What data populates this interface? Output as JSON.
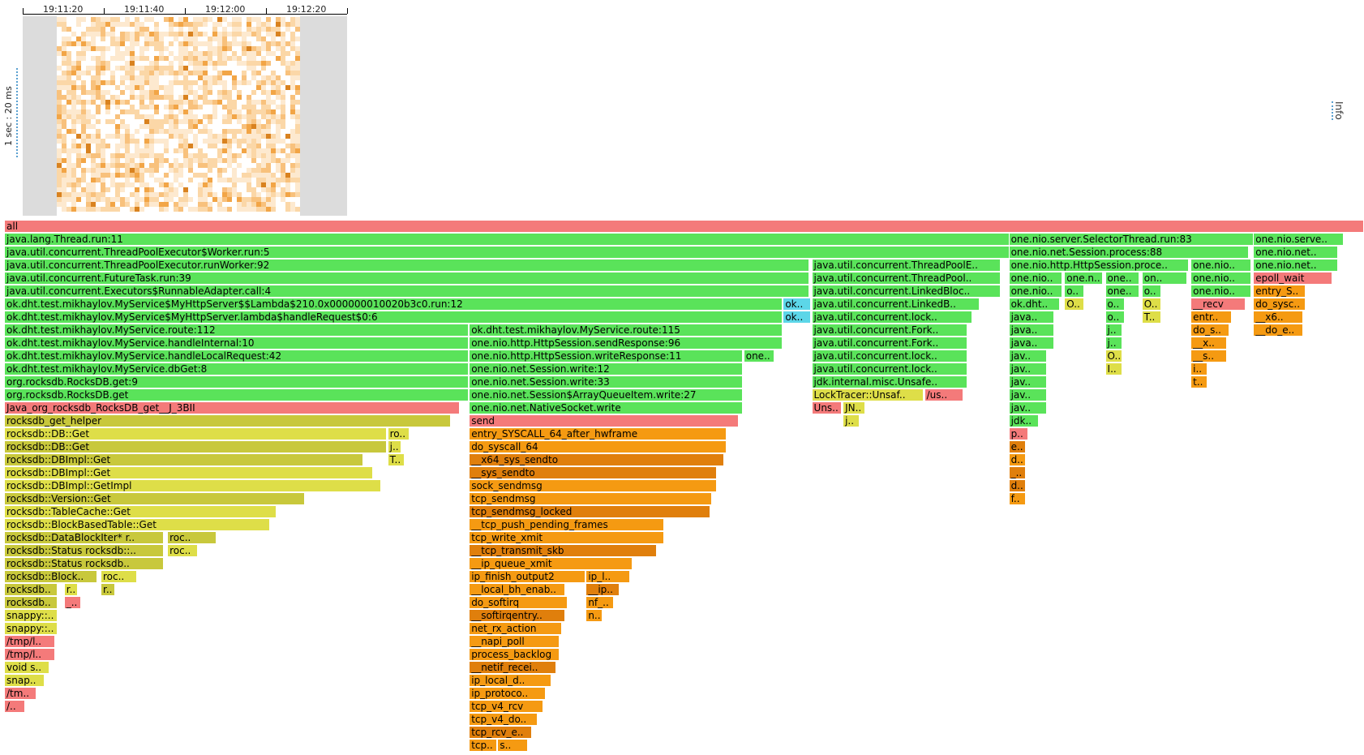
{
  "timeline": {
    "time_labels": [
      "19:11:20",
      "19:11:40",
      "19:12:00",
      "19:12:20"
    ],
    "scale_label": "1 sec : 20 ms",
    "heatmap_colors": [
      "#ffffff",
      "#fde9cf",
      "#fbd7a7",
      "#f8c17c",
      "#f2a546",
      "#d9821f"
    ]
  },
  "info_label": "Info",
  "colors": {
    "red": "#f47a7a",
    "java_green": "#5ae35a",
    "dark_green": "#48d048",
    "cyan": "#5cd6e8",
    "yellow": "#dede48",
    "olive": "#c8c83c",
    "orange": "#f59a12",
    "dark_orange": "#e07f0c"
  },
  "frames": [
    {
      "label": "all",
      "col": 0,
      "level": 0,
      "start": 0,
      "width": 1.0
    },
    {
      "label": "java.lang.Thread.run:11",
      "col": 1,
      "level": 1,
      "start": 0,
      "width": 0.739
    },
    {
      "label": "one.nio.server.SelectorThread.run:83",
      "col": 1,
      "level": 1,
      "start": 0.739,
      "width": 0.18
    },
    {
      "label": "one.nio.serve..",
      "col": 1,
      "level": 1,
      "start": 0.919,
      "width": 0.066
    },
    {
      "label": "java.util.concurrent.ThreadPoolExecutor$Worker.run:5",
      "col": 1,
      "level": 2,
      "start": 0,
      "width": 0.739
    },
    {
      "label": "one.nio.net.Session.process:88",
      "col": 1,
      "level": 2,
      "start": 0.739,
      "width": 0.176
    },
    {
      "label": "one.nio.net..",
      "col": 1,
      "level": 2,
      "start": 0.919,
      "width": 0.062
    },
    {
      "label": "java.util.concurrent.ThreadPoolExecutor.runWorker:92",
      "col": 1,
      "level": 3,
      "start": 0,
      "width": 0.592
    },
    {
      "label": "java.util.concurrent.ThreadPoolE..",
      "col": 1,
      "level": 3,
      "start": 0.594,
      "width": 0.139
    },
    {
      "label": "one.nio.http.HttpSession.proce..",
      "col": 1,
      "level": 3,
      "start": 0.739,
      "width": 0.132
    },
    {
      "label": "one.nio..",
      "col": 1,
      "level": 3,
      "start": 0.873,
      "width": 0.044
    },
    {
      "label": "one.nio.net..",
      "col": 1,
      "level": 3,
      "start": 0.919,
      "width": 0.062
    },
    {
      "label": "java.util.concurrent.FutureTask.run:39",
      "col": 1,
      "level": 4,
      "start": 0,
      "width": 0.592
    },
    {
      "label": "java.util.concurrent.ThreadPool..",
      "col": 1,
      "level": 4,
      "start": 0.594,
      "width": 0.139
    },
    {
      "label": "one.nio..",
      "col": 1,
      "level": 4,
      "start": 0.739,
      "width": 0.039
    },
    {
      "label": "one.n..",
      "col": 1,
      "level": 4,
      "start": 0.78,
      "width": 0.028
    },
    {
      "label": "one..",
      "col": 1,
      "level": 4,
      "start": 0.81,
      "width": 0.025
    },
    {
      "label": "on..",
      "col": 1,
      "level": 4,
      "start": 0.837,
      "width": 0.033
    },
    {
      "label": "one.nio..",
      "col": 1,
      "level": 4,
      "start": 0.873,
      "width": 0.044
    },
    {
      "label": "epoll_wait",
      "col": 0,
      "level": 4,
      "start": 0.919,
      "width": 0.058
    },
    {
      "label": "java.util.concurrent.Executors$RunnableAdapter.call:4",
      "col": 1,
      "level": 5,
      "start": 0,
      "width": 0.592
    },
    {
      "label": "java.util.concurrent.LinkedBloc..",
      "col": 1,
      "level": 5,
      "start": 0.594,
      "width": 0.139
    },
    {
      "label": "one.nio..",
      "col": 1,
      "level": 5,
      "start": 0.739,
      "width": 0.039
    },
    {
      "label": "o..",
      "col": 1,
      "level": 5,
      "start": 0.78,
      "width": 0.014
    },
    {
      "label": "one..",
      "col": 1,
      "level": 5,
      "start": 0.81,
      "width": 0.025
    },
    {
      "label": "o..",
      "col": 1,
      "level": 5,
      "start": 0.837,
      "width": 0.014
    },
    {
      "label": "one.nio..",
      "col": 1,
      "level": 5,
      "start": 0.873,
      "width": 0.044
    },
    {
      "label": "entry_S..",
      "col": 6,
      "level": 5,
      "start": 0.919,
      "width": 0.038
    },
    {
      "label": "ok.dht.test.mikhaylov.MyService$MyHttpServer$$Lambda$210.0x000000010020b3c0.run:12",
      "col": 1,
      "level": 6,
      "start": 0,
      "width": 0.572
    },
    {
      "label": "ok..",
      "col": 3,
      "level": 6,
      "start": 0.573,
      "width": 0.02
    },
    {
      "label": "java.util.concurrent.LinkedB..",
      "col": 1,
      "level": 6,
      "start": 0.594,
      "width": 0.123
    },
    {
      "label": "ok.dht..",
      "col": 1,
      "level": 6,
      "start": 0.739,
      "width": 0.037
    },
    {
      "label": "O..",
      "col": 4,
      "level": 6,
      "start": 0.78,
      "width": 0.014
    },
    {
      "label": "o..",
      "col": 1,
      "level": 6,
      "start": 0.81,
      "width": 0.014
    },
    {
      "label": "O..",
      "col": 4,
      "level": 6,
      "start": 0.837,
      "width": 0.014
    },
    {
      "label": "__recv",
      "col": 0,
      "level": 6,
      "start": 0.873,
      "width": 0.04
    },
    {
      "label": "do_sysc..",
      "col": 6,
      "level": 6,
      "start": 0.919,
      "width": 0.038
    },
    {
      "label": "ok.dht.test.mikhaylov.MyService$MyHttpServer.lambda$handleRequest$0:6",
      "col": 1,
      "level": 7,
      "start": 0,
      "width": 0.572
    },
    {
      "label": "ok..",
      "col": 3,
      "level": 7,
      "start": 0.573,
      "width": 0.02
    },
    {
      "label": "java.util.concurrent.lock..",
      "col": 1,
      "level": 7,
      "start": 0.594,
      "width": 0.118
    },
    {
      "label": "java..",
      "col": 1,
      "level": 7,
      "start": 0.739,
      "width": 0.033
    },
    {
      "label": "o..",
      "col": 1,
      "level": 7,
      "start": 0.81,
      "width": 0.014
    },
    {
      "label": "T..",
      "col": 4,
      "level": 7,
      "start": 0.837,
      "width": 0.014
    },
    {
      "label": "entr..",
      "col": 6,
      "level": 7,
      "start": 0.873,
      "width": 0.03
    },
    {
      "label": "__x6..",
      "col": 6,
      "level": 7,
      "start": 0.919,
      "width": 0.036
    },
    {
      "label": "ok.dht.test.mikhaylov.MyService.route:112",
      "col": 1,
      "level": 8,
      "start": 0,
      "width": 0.341
    },
    {
      "label": "ok.dht.test.mikhaylov.MyService.route:115",
      "col": 1,
      "level": 8,
      "start": 0.342,
      "width": 0.23
    },
    {
      "label": "java.util.concurrent.Fork..",
      "col": 1,
      "level": 8,
      "start": 0.594,
      "width": 0.114
    },
    {
      "label": "java..",
      "col": 1,
      "level": 8,
      "start": 0.739,
      "width": 0.033
    },
    {
      "label": "j..",
      "col": 1,
      "level": 8,
      "start": 0.81,
      "width": 0.012
    },
    {
      "label": "do_s..",
      "col": 6,
      "level": 8,
      "start": 0.873,
      "width": 0.028
    },
    {
      "label": "__do_e..",
      "col": 6,
      "level": 8,
      "start": 0.919,
      "width": 0.036
    },
    {
      "label": "ok.dht.test.mikhaylov.MyService.handleInternal:10",
      "col": 1,
      "level": 9,
      "start": 0,
      "width": 0.341
    },
    {
      "label": "one.nio.http.HttpSession.sendResponse:96",
      "col": 1,
      "level": 9,
      "start": 0.342,
      "width": 0.23
    },
    {
      "label": "java.util.concurrent.Fork..",
      "col": 1,
      "level": 9,
      "start": 0.594,
      "width": 0.114
    },
    {
      "label": "java..",
      "col": 1,
      "level": 9,
      "start": 0.739,
      "width": 0.033
    },
    {
      "label": "j..",
      "col": 1,
      "level": 9,
      "start": 0.81,
      "width": 0.012
    },
    {
      "label": "__x..",
      "col": 6,
      "level": 9,
      "start": 0.873,
      "width": 0.026
    },
    {
      "label": "ok.dht.test.mikhaylov.MyService.handleLocalRequest:42",
      "col": 1,
      "level": 10,
      "start": 0,
      "width": 0.341
    },
    {
      "label": "one.nio.http.HttpSession.writeResponse:11",
      "col": 1,
      "level": 10,
      "start": 0.342,
      "width": 0.201
    },
    {
      "label": "one..",
      "col": 1,
      "level": 10,
      "start": 0.544,
      "width": 0.022
    },
    {
      "label": "java.util.concurrent.lock..",
      "col": 1,
      "level": 10,
      "start": 0.594,
      "width": 0.114
    },
    {
      "label": "jav..",
      "col": 1,
      "level": 10,
      "start": 0.739,
      "width": 0.028
    },
    {
      "label": "O..",
      "col": 4,
      "level": 10,
      "start": 0.81,
      "width": 0.012
    },
    {
      "label": "__s..",
      "col": 6,
      "level": 10,
      "start": 0.873,
      "width": 0.026
    },
    {
      "label": "ok.dht.test.mikhaylov.MyService.dbGet:8",
      "col": 1,
      "level": 11,
      "start": 0,
      "width": 0.341
    },
    {
      "label": "one.nio.net.Session.write:12",
      "col": 1,
      "level": 11,
      "start": 0.342,
      "width": 0.201
    },
    {
      "label": "java.util.concurrent.lock..",
      "col": 1,
      "level": 11,
      "start": 0.594,
      "width": 0.114
    },
    {
      "label": "jav..",
      "col": 1,
      "level": 11,
      "start": 0.739,
      "width": 0.028
    },
    {
      "label": "I..",
      "col": 4,
      "level": 11,
      "start": 0.81,
      "width": 0.012
    },
    {
      "label": "i..",
      "col": 6,
      "level": 11,
      "start": 0.873,
      "width": 0.012
    },
    {
      "label": "org.rocksdb.RocksDB.get:9",
      "col": 1,
      "level": 12,
      "start": 0,
      "width": 0.341
    },
    {
      "label": "one.nio.net.Session.write:33",
      "col": 1,
      "level": 12,
      "start": 0.342,
      "width": 0.201
    },
    {
      "label": "jdk.internal.misc.Unsafe..",
      "col": 1,
      "level": 12,
      "start": 0.594,
      "width": 0.114
    },
    {
      "label": "jav..",
      "col": 1,
      "level": 12,
      "start": 0.739,
      "width": 0.028
    },
    {
      "label": "t..",
      "col": 6,
      "level": 12,
      "start": 0.873,
      "width": 0.012
    },
    {
      "label": "org.rocksdb.RocksDB.get",
      "col": 1,
      "level": 13,
      "start": 0,
      "width": 0.341
    },
    {
      "label": "one.nio.net.Session$ArrayQueueItem.write:27",
      "col": 1,
      "level": 13,
      "start": 0.342,
      "width": 0.201
    },
    {
      "label": "LockTracer::Unsaf..",
      "col": 4,
      "level": 13,
      "start": 0.594,
      "width": 0.082
    },
    {
      "label": "/us..",
      "col": 0,
      "level": 13,
      "start": 0.677,
      "width": 0.028
    },
    {
      "label": "jav..",
      "col": 1,
      "level": 13,
      "start": 0.739,
      "width": 0.028
    },
    {
      "label": "Java_org_rocksdb_RocksDB_get__J_3BII",
      "col": 0,
      "level": 14,
      "start": 0,
      "width": 0.335
    },
    {
      "label": "one.nio.net.NativeSocket.write",
      "col": 1,
      "level": 14,
      "start": 0.342,
      "width": 0.201
    },
    {
      "label": "Uns..",
      "col": 0,
      "level": 14,
      "start": 0.594,
      "width": 0.022
    },
    {
      "label": "JN..",
      "col": 4,
      "level": 14,
      "start": 0.617,
      "width": 0.016
    },
    {
      "label": "jav..",
      "col": 1,
      "level": 14,
      "start": 0.739,
      "width": 0.028
    },
    {
      "label": "rocksdb_get_helper",
      "col": 5,
      "level": 15,
      "start": 0,
      "width": 0.328
    },
    {
      "label": "send",
      "col": 0,
      "level": 15,
      "start": 0.342,
      "width": 0.198
    },
    {
      "label": "j..",
      "col": 4,
      "level": 15,
      "start": 0.617,
      "width": 0.012
    },
    {
      "label": "jdk..",
      "col": 1,
      "level": 15,
      "start": 0.739,
      "width": 0.022
    },
    {
      "label": "rocksdb::DB::Get",
      "col": 4,
      "level": 16,
      "start": 0,
      "width": 0.281
    },
    {
      "label": "ro..",
      "col": 4,
      "level": 16,
      "start": 0.282,
      "width": 0.016
    },
    {
      "label": "entry_SYSCALL_64_after_hwframe",
      "col": 6,
      "level": 16,
      "start": 0.342,
      "width": 0.189
    },
    {
      "label": "p..",
      "col": 0,
      "level": 16,
      "start": 0.739,
      "width": 0.014
    },
    {
      "label": "rocksdb::DB::Get",
      "col": 5,
      "level": 17,
      "start": 0,
      "width": 0.281
    },
    {
      "label": "j..",
      "col": 4,
      "level": 17,
      "start": 0.282,
      "width": 0.01
    },
    {
      "label": "do_syscall_64",
      "col": 6,
      "level": 17,
      "start": 0.342,
      "width": 0.189
    },
    {
      "label": "e..",
      "col": 7,
      "level": 17,
      "start": 0.739,
      "width": 0.012
    },
    {
      "label": "rocksdb::DBImpl::Get",
      "col": 5,
      "level": 18,
      "start": 0,
      "width": 0.264
    },
    {
      "label": "T..",
      "col": 4,
      "level": 18,
      "start": 0.282,
      "width": 0.012
    },
    {
      "label": "__x64_sys_sendto",
      "col": 7,
      "level": 18,
      "start": 0.342,
      "width": 0.187
    },
    {
      "label": "d..",
      "col": 6,
      "level": 18,
      "start": 0.739,
      "width": 0.012
    },
    {
      "label": "rocksdb::DBImpl::Get",
      "col": 4,
      "level": 19,
      "start": 0,
      "width": 0.271
    },
    {
      "label": "__sys_sendto",
      "col": 7,
      "level": 19,
      "start": 0.342,
      "width": 0.182
    },
    {
      "label": "_..",
      "col": 7,
      "level": 19,
      "start": 0.739,
      "width": 0.012
    },
    {
      "label": "rocksdb::DBImpl::GetImpl",
      "col": 4,
      "level": 20,
      "start": 0,
      "width": 0.277
    },
    {
      "label": "sock_sendmsg",
      "col": 6,
      "level": 20,
      "start": 0.342,
      "width": 0.182
    },
    {
      "label": "d..",
      "col": 7,
      "level": 20,
      "start": 0.739,
      "width": 0.012
    },
    {
      "label": "rocksdb::Version::Get",
      "col": 5,
      "level": 21,
      "start": 0,
      "width": 0.221
    },
    {
      "label": "tcp_sendmsg",
      "col": 6,
      "level": 21,
      "start": 0.342,
      "width": 0.178
    },
    {
      "label": "f..",
      "col": 6,
      "level": 21,
      "start": 0.739,
      "width": 0.012
    },
    {
      "label": "rocksdb::TableCache::Get",
      "col": 4,
      "level": 22,
      "start": 0,
      "width": 0.2
    },
    {
      "label": "tcp_sendmsg_locked",
      "col": 7,
      "level": 22,
      "start": 0.342,
      "width": 0.177
    },
    {
      "label": "rocksdb::BlockBasedTable::Get",
      "col": 4,
      "level": 23,
      "start": 0,
      "width": 0.195
    },
    {
      "label": "__tcp_push_pending_frames",
      "col": 6,
      "level": 23,
      "start": 0.342,
      "width": 0.143
    },
    {
      "label": "rocksdb::DataBlockIter* r..",
      "col": 5,
      "level": 24,
      "start": 0,
      "width": 0.117
    },
    {
      "label": "roc..",
      "col": 5,
      "level": 24,
      "start": 0.12,
      "width": 0.036
    },
    {
      "label": "tcp_write_xmit",
      "col": 6,
      "level": 24,
      "start": 0.342,
      "width": 0.143
    },
    {
      "label": "rocksdb::Status rocksdb::..",
      "col": 5,
      "level": 25,
      "start": 0,
      "width": 0.117
    },
    {
      "label": "roc..",
      "col": 4,
      "level": 25,
      "start": 0.12,
      "width": 0.022
    },
    {
      "label": "__tcp_transmit_skb",
      "col": 7,
      "level": 25,
      "start": 0.342,
      "width": 0.138
    },
    {
      "label": "rocksdb::Status rocksdb..",
      "col": 5,
      "level": 26,
      "start": 0,
      "width": 0.117
    },
    {
      "label": "__ip_queue_xmit",
      "col": 6,
      "level": 26,
      "start": 0.342,
      "width": 0.12
    },
    {
      "label": "rocksdb::Block..",
      "col": 5,
      "level": 27,
      "start": 0,
      "width": 0.068
    },
    {
      "label": "roc..",
      "col": 4,
      "level": 27,
      "start": 0.071,
      "width": 0.026
    },
    {
      "label": "ip_finish_output2",
      "col": 6,
      "level": 27,
      "start": 0.342,
      "width": 0.085
    },
    {
      "label": "ip_l..",
      "col": 6,
      "level": 27,
      "start": 0.428,
      "width": 0.032
    },
    {
      "label": "rocksdb..",
      "col": 5,
      "level": 28,
      "start": 0,
      "width": 0.039
    },
    {
      "label": "r..",
      "col": 4,
      "level": 28,
      "start": 0.044,
      "width": 0.01
    },
    {
      "label": "r..",
      "col": 5,
      "level": 28,
      "start": 0.071,
      "width": 0.01
    },
    {
      "label": "__local_bh_enab..",
      "col": 6,
      "level": 28,
      "start": 0.342,
      "width": 0.07
    },
    {
      "label": "__ip..",
      "col": 7,
      "level": 28,
      "start": 0.428,
      "width": 0.024
    },
    {
      "label": "rocksdb..",
      "col": 5,
      "level": 29,
      "start": 0,
      "width": 0.039
    },
    {
      "label": "_..",
      "col": 0,
      "level": 29,
      "start": 0.044,
      "width": 0.012
    },
    {
      "label": "do_softirq",
      "col": 6,
      "level": 29,
      "start": 0.342,
      "width": 0.072
    },
    {
      "label": "nf_..",
      "col": 6,
      "level": 29,
      "start": 0.428,
      "width": 0.02
    },
    {
      "label": "snappy::..",
      "col": 4,
      "level": 30,
      "start": 0,
      "width": 0.039
    },
    {
      "label": "__softirqentry..",
      "col": 7,
      "level": 30,
      "start": 0.342,
      "width": 0.07
    },
    {
      "label": "n..",
      "col": 6,
      "level": 30,
      "start": 0.428,
      "width": 0.012
    },
    {
      "label": "snappy::..",
      "col": 4,
      "level": 31,
      "start": 0,
      "width": 0.039
    },
    {
      "label": "net_rx_action",
      "col": 6,
      "level": 31,
      "start": 0.342,
      "width": 0.068
    },
    {
      "label": "/tmp/l..",
      "col": 0,
      "level": 32,
      "start": 0,
      "width": 0.037
    },
    {
      "label": "__napi_poll",
      "col": 6,
      "level": 32,
      "start": 0.342,
      "width": 0.066
    },
    {
      "label": "/tmp/l..",
      "col": 0,
      "level": 33,
      "start": 0,
      "width": 0.037
    },
    {
      "label": "process_backlog",
      "col": 6,
      "level": 33,
      "start": 0.342,
      "width": 0.066
    },
    {
      "label": "void s..",
      "col": 4,
      "level": 34,
      "start": 0,
      "width": 0.033
    },
    {
      "label": "__netif_recei..",
      "col": 7,
      "level": 34,
      "start": 0.342,
      "width": 0.064
    },
    {
      "label": "snap..",
      "col": 4,
      "level": 35,
      "start": 0,
      "width": 0.029
    },
    {
      "label": "ip_local_d..",
      "col": 6,
      "level": 35,
      "start": 0.342,
      "width": 0.06
    },
    {
      "label": "/tm..",
      "col": 0,
      "level": 36,
      "start": 0,
      "width": 0.023
    },
    {
      "label": "ip_protoco..",
      "col": 6,
      "level": 36,
      "start": 0.342,
      "width": 0.056
    },
    {
      "label": "/..",
      "col": 0,
      "level": 37,
      "start": 0,
      "width": 0.015
    },
    {
      "label": "tcp_v4_rcv",
      "col": 6,
      "level": 37,
      "start": 0.342,
      "width": 0.054
    },
    {
      "label": "tcp_v4_do..",
      "col": 6,
      "level": 38,
      "start": 0.342,
      "width": 0.05
    },
    {
      "label": "tcp_rcv_e..",
      "col": 7,
      "level": 39,
      "start": 0.342,
      "width": 0.046
    },
    {
      "label": "tcp..",
      "col": 6,
      "level": 40,
      "start": 0.342,
      "width": 0.02
    },
    {
      "label": "s..",
      "col": 6,
      "level": 40,
      "start": 0.363,
      "width": 0.022
    }
  ]
}
